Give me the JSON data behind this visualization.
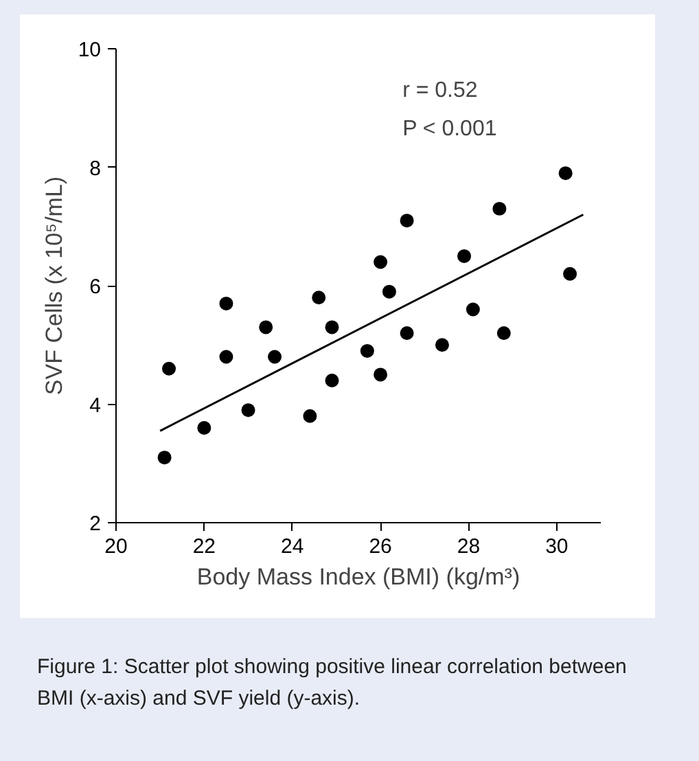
{
  "chart_data": {
    "type": "scatter",
    "xlabel": "Body Mass Index (BMI) (kg/m³)",
    "ylabel": "SVF Cells (x 10⁵/mL)",
    "xlim": [
      20,
      31
    ],
    "ylim": [
      2,
      10
    ],
    "xticks": [
      20,
      22,
      24,
      26,
      28,
      30
    ],
    "yticks": [
      2,
      4,
      6,
      8,
      10
    ],
    "grid": false,
    "annotations": [
      "r = 0.52",
      "P < 0.001",
      "Figure 1: Scatter plot showing positive linear correlation between BMI (x-axis) and SVF yield (y-axis)."
    ],
    "series": [
      {
        "marker": "circle",
        "color": "#000000",
        "x": [
          21.1,
          21.2,
          22.0,
          22.5,
          22.5,
          23.0,
          23.4,
          23.6,
          24.4,
          24.6,
          24.9,
          24.9,
          25.7,
          26.0,
          26.0,
          26.2,
          26.6,
          26.6,
          27.4,
          27.9,
          28.1,
          28.7,
          28.8,
          30.2,
          30.3
        ],
        "values": [
          3.1,
          4.6,
          3.6,
          5.7,
          4.8,
          3.9,
          5.3,
          4.8,
          3.8,
          5.8,
          5.3,
          4.4,
          4.9,
          4.5,
          6.4,
          5.9,
          7.1,
          5.2,
          5.0,
          6.5,
          5.6,
          7.3,
          5.2,
          7.9,
          6.2
        ]
      },
      {
        "type": "line",
        "color": "#000000",
        "x": [
          21.0,
          30.6
        ],
        "values": [
          3.55,
          7.2
        ]
      }
    ]
  }
}
